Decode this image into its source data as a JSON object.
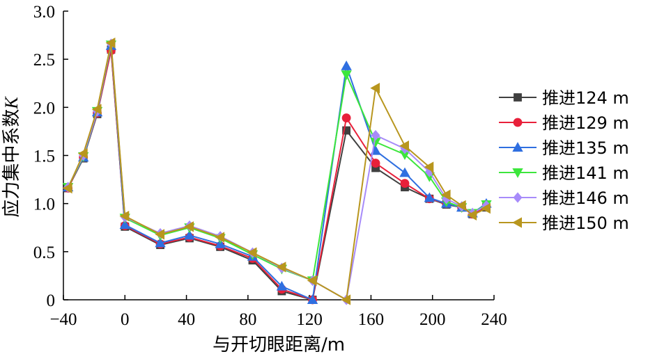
{
  "chart_data": {
    "type": "line",
    "xlabel": "与开切眼距离/m",
    "ylabel": "应力集中系数",
    "ylabel_italic": "K",
    "xlim": [
      -40,
      240
    ],
    "ylim": [
      0,
      3.0
    ],
    "xticks": [
      "−40",
      "0",
      "40",
      "80",
      "120",
      "160",
      "200",
      "240"
    ],
    "xtick_values": [
      -40,
      0,
      40,
      80,
      120,
      160,
      200,
      240
    ],
    "yticks": [
      "0",
      "0.5",
      "1.0",
      "1.5",
      "2.0",
      "2.5",
      "3.0"
    ],
    "ytick_values": [
      0,
      0.5,
      1.0,
      1.5,
      2.0,
      2.5,
      3.0
    ],
    "legend_position": "right",
    "grid": false,
    "series": [
      {
        "name": "推进124 m",
        "color": "#404040",
        "marker": "square",
        "x": [
          -37,
          -27,
          -18,
          -9,
          0,
          23,
          42,
          62,
          83,
          102,
          122,
          144,
          163,
          182,
          198,
          209,
          219,
          226,
          235
        ],
        "y": [
          1.16,
          1.47,
          1.93,
          2.6,
          0.76,
          0.57,
          0.64,
          0.55,
          0.41,
          0.09,
          0.0,
          1.76,
          1.37,
          1.17,
          1.05,
          0.99,
          0.96,
          0.89,
          0.96
        ]
      },
      {
        "name": "推进129 m",
        "color": "#e8203a",
        "marker": "circle",
        "x": [
          -37,
          -27,
          -18,
          -9,
          0,
          23,
          42,
          62,
          83,
          102,
          122,
          144,
          163,
          182,
          198,
          209,
          219,
          226,
          235
        ],
        "y": [
          1.16,
          1.48,
          1.94,
          2.59,
          0.77,
          0.58,
          0.65,
          0.56,
          0.43,
          0.11,
          0.0,
          1.89,
          1.42,
          1.21,
          1.05,
          1.0,
          0.96,
          0.89,
          0.97
        ]
      },
      {
        "name": "推进135 m",
        "color": "#2f6fe0",
        "marker": "triangle-up",
        "x": [
          -37,
          -27,
          -18,
          -9,
          0,
          23,
          42,
          62,
          83,
          102,
          122,
          144,
          163,
          182,
          198,
          209,
          219,
          226,
          235
        ],
        "y": [
          1.17,
          1.48,
          1.95,
          2.64,
          0.78,
          0.59,
          0.67,
          0.58,
          0.45,
          0.14,
          0.0,
          2.43,
          1.55,
          1.32,
          1.06,
          1.0,
          0.96,
          0.9,
          1.0
        ]
      },
      {
        "name": "推进141 m",
        "color": "#3ce63c",
        "marker": "triangle-down",
        "x": [
          -37,
          -27,
          -18,
          -9,
          0,
          23,
          42,
          62,
          83,
          102,
          122,
          144,
          163,
          182,
          198,
          209,
          219,
          226,
          235
        ],
        "y": [
          1.17,
          1.49,
          1.96,
          2.65,
          0.85,
          0.67,
          0.75,
          0.64,
          0.47,
          0.32,
          0.2,
          2.34,
          1.64,
          1.51,
          1.28,
          1.02,
          0.96,
          0.9,
          0.99
        ]
      },
      {
        "name": "推进146 m",
        "color": "#a78bfa",
        "marker": "diamond",
        "x": [
          -37,
          -27,
          -18,
          -9,
          0,
          23,
          42,
          62,
          83,
          102,
          122,
          144,
          163,
          182,
          198,
          209,
          219,
          226,
          235
        ],
        "y": [
          1.17,
          1.5,
          1.96,
          2.66,
          0.86,
          0.69,
          0.77,
          0.66,
          0.49,
          0.33,
          0.2,
          0.0,
          1.71,
          1.57,
          1.33,
          1.05,
          0.97,
          0.9,
          0.98
        ]
      },
      {
        "name": "推进150 m",
        "color": "#b8961e",
        "marker": "triangle-left",
        "x": [
          -37,
          -27,
          -18,
          -9,
          0,
          23,
          42,
          62,
          83,
          102,
          122,
          144,
          163,
          182,
          198,
          209,
          219,
          226,
          235
        ],
        "y": [
          1.16,
          1.52,
          1.98,
          2.67,
          0.87,
          0.68,
          0.76,
          0.65,
          0.49,
          0.34,
          0.2,
          0.0,
          2.2,
          1.6,
          1.38,
          1.09,
          0.98,
          0.88,
          0.95
        ]
      }
    ]
  }
}
